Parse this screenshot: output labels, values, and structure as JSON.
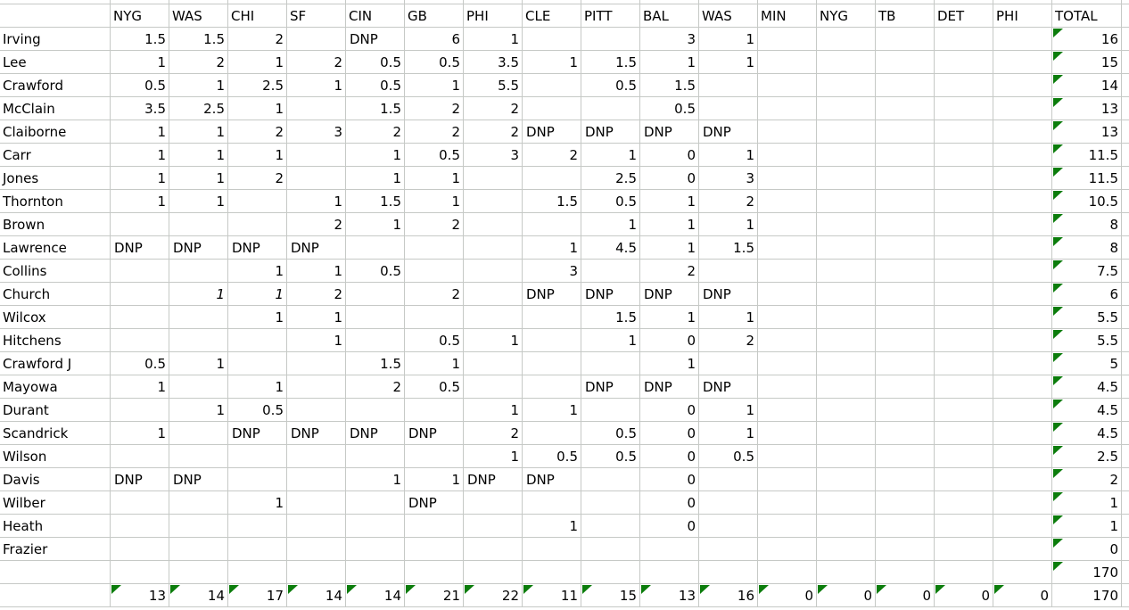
{
  "sheet": {
    "corner_label": "",
    "opponents": [
      "NYG",
      "WAS",
      "CHI",
      "SF",
      "CIN",
      "GB",
      "PHI",
      "CLE",
      "PITT",
      "BAL",
      "WAS",
      "MIN",
      "NYG",
      "TB",
      "DET",
      "PHI"
    ],
    "total_label": "TOTAL",
    "players": [
      {
        "name": "Irving",
        "cells": [
          "1.5",
          "1.5",
          "2",
          "",
          "DNP",
          "6",
          "1",
          "",
          "",
          "3",
          "1",
          "",
          "",
          "",
          "",
          ""
        ],
        "total": "16"
      },
      {
        "name": "Lee",
        "cells": [
          "1",
          "2",
          "1",
          "2",
          "0.5",
          "0.5",
          "3.5",
          "1",
          "1.5",
          "1",
          "1",
          "",
          "",
          "",
          "",
          ""
        ],
        "total": "15"
      },
      {
        "name": "Crawford",
        "cells": [
          "0.5",
          "1",
          "2.5",
          "1",
          "0.5",
          "1",
          "5.5",
          "",
          "0.5",
          "1.5",
          "",
          "",
          "",
          "",
          "",
          ""
        ],
        "total": "14"
      },
      {
        "name": "McClain",
        "cells": [
          "3.5",
          "2.5",
          "1",
          "",
          "1.5",
          "2",
          "2",
          "",
          "",
          "0.5",
          "",
          "",
          "",
          "",
          "",
          ""
        ],
        "total": "13"
      },
      {
        "name": "Claiborne",
        "cells": [
          "1",
          "1",
          "2",
          "3",
          "2",
          "2",
          "2",
          "DNP",
          "DNP",
          "DNP",
          "DNP",
          "",
          "",
          "",
          "",
          ""
        ],
        "total": "13"
      },
      {
        "name": "Carr",
        "cells": [
          "1",
          "1",
          "1",
          "",
          "1",
          "0.5",
          "3",
          "2",
          "1",
          "0",
          "1",
          "",
          "",
          "",
          "",
          ""
        ],
        "total": "11.5"
      },
      {
        "name": "Jones",
        "cells": [
          "1",
          "1",
          "2",
          "",
          "1",
          "1",
          "",
          "",
          "2.5",
          "0",
          "3",
          "",
          "",
          "",
          "",
          ""
        ],
        "total": "11.5"
      },
      {
        "name": "Thornton",
        "cells": [
          "1",
          "1",
          "",
          "1",
          "1.5",
          "1",
          "",
          "1.5",
          "0.5",
          "1",
          "2",
          "",
          "",
          "",
          "",
          ""
        ],
        "total": "10.5"
      },
      {
        "name": "Brown",
        "cells": [
          "",
          "",
          "",
          "2",
          "1",
          "2",
          "",
          "",
          "1",
          "1",
          "1",
          "",
          "",
          "",
          "",
          ""
        ],
        "total": "8"
      },
      {
        "name": "Lawrence",
        "cells": [
          "DNP",
          "DNP",
          "DNP",
          "DNP",
          "",
          "",
          "",
          "1",
          "4.5",
          "1",
          "1.5",
          "",
          "",
          "",
          "",
          ""
        ],
        "total": "8"
      },
      {
        "name": "Collins",
        "cells": [
          "",
          "",
          "1",
          "1",
          "0.5",
          "",
          "",
          "3",
          "",
          "2",
          "",
          "",
          "",
          "",
          "",
          ""
        ],
        "total": "7.5"
      },
      {
        "name": "Church",
        "cells": [
          "",
          "1",
          "1",
          "2",
          "",
          "2",
          "",
          "DNP",
          "DNP",
          "DNP",
          "DNP",
          "",
          "",
          "",
          "",
          ""
        ],
        "total": "6",
        "italics": [
          1,
          2
        ]
      },
      {
        "name": "Wilcox",
        "cells": [
          "",
          "",
          "1",
          "1",
          "",
          "",
          "",
          "",
          "1.5",
          "1",
          "1",
          "",
          "",
          "",
          "",
          ""
        ],
        "total": "5.5"
      },
      {
        "name": "Hitchens",
        "cells": [
          "",
          "",
          "",
          "1",
          "",
          "0.5",
          "1",
          "",
          "1",
          "0",
          "2",
          "",
          "",
          "",
          "",
          ""
        ],
        "total": "5.5"
      },
      {
        "name": "Crawford J",
        "cells": [
          "0.5",
          "1",
          "",
          "",
          "1.5",
          "1",
          "",
          "",
          "",
          "1",
          "",
          "",
          "",
          "",
          "",
          ""
        ],
        "total": "5"
      },
      {
        "name": "Mayowa",
        "cells": [
          "1",
          "",
          "1",
          "",
          "2",
          "0.5",
          "",
          "",
          "DNP",
          "DNP",
          "DNP",
          "",
          "",
          "",
          "",
          ""
        ],
        "total": "4.5"
      },
      {
        "name": "Durant",
        "cells": [
          "",
          "1",
          "0.5",
          "",
          "",
          "",
          "1",
          "1",
          "",
          "0",
          "1",
          "",
          "",
          "",
          "",
          ""
        ],
        "total": "4.5"
      },
      {
        "name": "Scandrick",
        "cells": [
          "1",
          "",
          "DNP",
          "DNP",
          "DNP",
          "DNP",
          "2",
          "",
          "0.5",
          "0",
          "1",
          "",
          "",
          "",
          "",
          ""
        ],
        "total": "4.5"
      },
      {
        "name": "Wilson",
        "cells": [
          "",
          "",
          "",
          "",
          "",
          "",
          "1",
          "0.5",
          "0.5",
          "0",
          "0.5",
          "",
          "",
          "",
          "",
          ""
        ],
        "total": "2.5"
      },
      {
        "name": "Davis",
        "cells": [
          "DNP",
          "DNP",
          "",
          "",
          "1",
          "1",
          "DNP",
          "DNP",
          "",
          "0",
          "",
          "",
          "",
          "",
          "",
          ""
        ],
        "total": "2"
      },
      {
        "name": "Wilber",
        "cells": [
          "",
          "",
          "1",
          "",
          "",
          "DNP",
          "",
          "",
          "",
          "0",
          "",
          "",
          "",
          "",
          "",
          ""
        ],
        "total": "1"
      },
      {
        "name": "Heath",
        "cells": [
          "",
          "",
          "",
          "",
          "",
          "",
          "",
          "1",
          "",
          "0",
          "",
          "",
          "",
          "",
          "",
          ""
        ],
        "total": "1"
      },
      {
        "name": "Frazier",
        "cells": [
          "",
          "",
          "",
          "",
          "",
          "",
          "",
          "",
          "",
          "",
          "",
          "",
          "",
          "",
          "",
          ""
        ],
        "total": "0"
      }
    ],
    "pre_total_row": {
      "total": "170"
    },
    "grand_total_row": {
      "cells": [
        "13",
        "14",
        "17",
        "14",
        "14",
        "21",
        "22",
        "11",
        "15",
        "13",
        "16",
        "0",
        "0",
        "0",
        "0",
        "0"
      ],
      "total": "170"
    },
    "colors": {
      "grid": "#c6c9c6",
      "indicator_green": "#0b7c0b",
      "text": "#000000",
      "background": "#ffffff"
    }
  }
}
